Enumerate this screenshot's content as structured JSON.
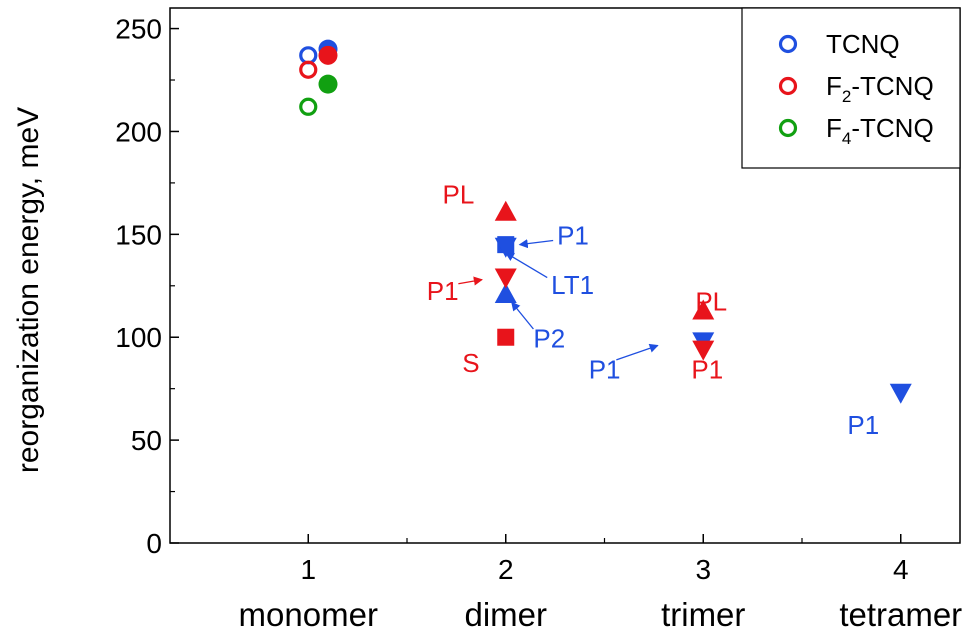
{
  "chart_data": {
    "type": "scatter",
    "title": "",
    "xlabel": "",
    "ylabel": "reorganization energy, meV",
    "xlim": [
      0.3,
      4.3
    ],
    "ylim": [
      0,
      260
    ],
    "grid": false,
    "legend_position": "top-right",
    "x_ticks": [
      {
        "value": 1,
        "label": "1",
        "sublabel": "monomer"
      },
      {
        "value": 2,
        "label": "2",
        "sublabel": "dimer"
      },
      {
        "value": 3,
        "label": "3",
        "sublabel": "trimer"
      },
      {
        "value": 4,
        "label": "4",
        "sublabel": "tetramer"
      }
    ],
    "y_ticks": [
      0,
      50,
      100,
      150,
      200,
      250
    ],
    "legend": [
      {
        "label": "TCNQ",
        "color": "#1f4fe0",
        "marker": "open-circle"
      },
      {
        "label": "F",
        "sub": "2",
        "suffix": "-TCNQ",
        "color": "#e8141b",
        "marker": "open-circle"
      },
      {
        "label": "F",
        "sub": "4",
        "suffix": "-TCNQ",
        "color": "#11a011",
        "marker": "open-circle"
      }
    ],
    "series": [
      {
        "color": "#1f4fe0",
        "points": [
          {
            "x": 1,
            "y": 237,
            "marker": "open-circle"
          },
          {
            "x": 1.1,
            "y": 240,
            "marker": "filled-circle"
          },
          {
            "x": 2,
            "y": 145,
            "marker": "square"
          },
          {
            "x": 2,
            "y": 144,
            "marker": "triangle-down"
          },
          {
            "x": 2,
            "y": 121,
            "marker": "triangle-up"
          },
          {
            "x": 3,
            "y": 98,
            "marker": "triangle-down"
          },
          {
            "x": 4,
            "y": 73,
            "marker": "triangle-down"
          }
        ]
      },
      {
        "color": "#e8141b",
        "points": [
          {
            "x": 1,
            "y": 230,
            "marker": "open-circle"
          },
          {
            "x": 1.1,
            "y": 237,
            "marker": "filled-circle"
          },
          {
            "x": 2,
            "y": 161,
            "marker": "triangle-up"
          },
          {
            "x": 2,
            "y": 129,
            "marker": "triangle-down"
          },
          {
            "x": 2,
            "y": 100,
            "marker": "square"
          },
          {
            "x": 3,
            "y": 113,
            "marker": "triangle-up"
          },
          {
            "x": 3,
            "y": 94,
            "marker": "triangle-down"
          }
        ]
      },
      {
        "color": "#11a011",
        "points": [
          {
            "x": 1,
            "y": 212,
            "marker": "open-circle"
          },
          {
            "x": 1.1,
            "y": 223,
            "marker": "filled-circle"
          }
        ]
      }
    ],
    "annotations": [
      {
        "text": "PL",
        "color": "#e8141b",
        "x": 1.68,
        "y": 165,
        "anchor": "start",
        "target": {
          "x": 2,
          "y": 161
        }
      },
      {
        "text": "P1",
        "color": "#1f4fe0",
        "x": 2.26,
        "y": 145,
        "anchor": "start",
        "arrow_from": {
          "x": 2.24,
          "y": 147
        },
        "arrow_to": {
          "x": 2.07,
          "y": 145
        }
      },
      {
        "text": "LT1",
        "color": "#1f4fe0",
        "x": 2.23,
        "y": 121,
        "anchor": "start",
        "arrow_from": {
          "x": 2.21,
          "y": 129
        },
        "arrow_to": {
          "x": 2.0,
          "y": 141
        }
      },
      {
        "text": "P1",
        "color": "#e8141b",
        "x": 1.6,
        "y": 118,
        "anchor": "start",
        "arrow_from": {
          "x": 1.76,
          "y": 126
        },
        "arrow_to": {
          "x": 1.88,
          "y": 128
        }
      },
      {
        "text": "P2",
        "color": "#1f4fe0",
        "x": 2.14,
        "y": 95,
        "anchor": "start",
        "arrow_from": {
          "x": 2.14,
          "y": 104
        },
        "arrow_to": {
          "x": 2.03,
          "y": 117
        }
      },
      {
        "text": "S",
        "color": "#e8141b",
        "x": 1.78,
        "y": 83,
        "anchor": "start",
        "target": {
          "x": 2,
          "y": 100
        }
      },
      {
        "text": "PL",
        "color": "#e8141b",
        "x": 2.96,
        "y": 113,
        "anchor": "start",
        "target": {
          "x": 3,
          "y": 113
        }
      },
      {
        "text": "P1",
        "color": "#1f4fe0",
        "x": 2.42,
        "y": 80,
        "anchor": "start",
        "arrow_from": {
          "x": 2.56,
          "y": 89
        },
        "arrow_to": {
          "x": 2.77,
          "y": 96
        }
      },
      {
        "text": "P1",
        "color": "#e8141b",
        "x": 2.94,
        "y": 80,
        "anchor": "start",
        "target": {
          "x": 3,
          "y": 94
        }
      },
      {
        "text": "P1",
        "color": "#1f4fe0",
        "x": 3.73,
        "y": 53,
        "anchor": "start",
        "target": {
          "x": 4,
          "y": 73
        }
      }
    ]
  }
}
